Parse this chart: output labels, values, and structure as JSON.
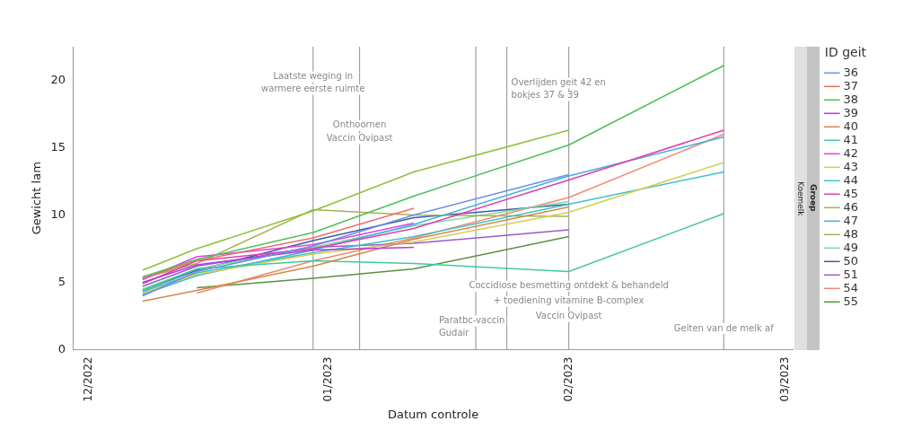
{
  "chart_data": {
    "type": "line",
    "xlabel": "Datum controle",
    "ylabel": "Gewicht lam",
    "legend_title": "ID geit",
    "legend": "right",
    "grid": false,
    "marker": "none",
    "line_style": "solid",
    "x": [
      "2022-12-08",
      "2022-12-15",
      "2022-12-30",
      "2023-01-12",
      "2023-02-01",
      "2023-02-21"
    ],
    "xlim": [
      "2022-11-29",
      "2023-03-02"
    ],
    "xticks": [
      {
        "value": "2022-12-01",
        "label": "12/2022"
      },
      {
        "value": "2023-01-01",
        "label": "01/2023"
      },
      {
        "value": "2023-02-01",
        "label": "02/2023"
      },
      {
        "value": "2023-03-01",
        "label": "03/2023"
      }
    ],
    "ylim": [
      0,
      22.5
    ],
    "yticks": [
      0,
      5,
      10,
      15,
      20
    ],
    "series": [
      {
        "name": "36",
        "color": "#6a8de8",
        "values": [
          4.0,
          5.8,
          7.7,
          10.0,
          13.0,
          null
        ]
      },
      {
        "name": "37",
        "color": "#e8706a",
        "values": [
          5.3,
          6.6,
          8.3,
          10.5,
          null,
          null
        ]
      },
      {
        "name": "38",
        "color": "#4cbf5a",
        "values": [
          5.4,
          6.7,
          8.7,
          11.4,
          15.2,
          21.1
        ]
      },
      {
        "name": "39",
        "color": "#b53ae0",
        "values": [
          5.0,
          6.3,
          7.4,
          7.6,
          null,
          null
        ]
      },
      {
        "name": "40",
        "color": "#d4884a",
        "values": [
          3.6,
          4.4,
          6.2,
          8.2,
          10.6,
          null
        ]
      },
      {
        "name": "41",
        "color": "#40c9a0",
        "values": [
          4.4,
          6.0,
          6.6,
          6.4,
          5.8,
          10.1
        ]
      },
      {
        "name": "42",
        "color": "#e040e0",
        "values": [
          5.2,
          6.9,
          7.8,
          9.4,
          null,
          null
        ]
      },
      {
        "name": "43",
        "color": "#d4cf50",
        "values": [
          4.2,
          5.6,
          7.1,
          8.0,
          10.2,
          13.9
        ]
      },
      {
        "name": "44",
        "color": "#40c0c8",
        "values": [
          4.3,
          5.7,
          7.2,
          8.4,
          10.8,
          13.2
        ]
      },
      {
        "name": "45",
        "color": "#e03caa",
        "values": [
          4.9,
          6.6,
          7.5,
          9.0,
          12.6,
          16.3
        ]
      },
      {
        "name": "46",
        "color": "#90c03a",
        "values": [
          5.9,
          7.5,
          10.3,
          13.2,
          16.3,
          null
        ]
      },
      {
        "name": "47",
        "color": "#40b0e0",
        "values": [
          4.1,
          5.5,
          7.4,
          9.3,
          12.9,
          15.8
        ]
      },
      {
        "name": "48",
        "color": "#a8b050",
        "values": [
          5.3,
          6.4,
          10.4,
          10.0,
          9.9,
          null
        ]
      },
      {
        "name": "49",
        "color": "#80d8a0",
        "values": [
          4.5,
          6.0,
          7.6,
          9.2,
          11.0,
          null
        ]
      },
      {
        "name": "50",
        "color": "#3a5aa8",
        "values": [
          4.4,
          5.9,
          8.1,
          9.8,
          10.8,
          null
        ]
      },
      {
        "name": "51",
        "color": "#9a5ac8",
        "values": [
          4.7,
          6.2,
          7.6,
          7.9,
          8.9,
          null
        ]
      },
      {
        "name": "54",
        "color": "#f08a70",
        "values": [
          null,
          4.2,
          6.6,
          8.3,
          11.3,
          16.0
        ]
      },
      {
        "name": "55",
        "color": "#5a9040",
        "values": [
          null,
          4.6,
          5.3,
          6.0,
          8.4,
          null
        ]
      }
    ],
    "ref_lines": [
      {
        "axis": "x",
        "value": "2022-12-30",
        "label": "Laatste weging in\nwarmere eerste ruimte",
        "color": "#a0a0a0"
      },
      {
        "axis": "x",
        "value": "2023-01-05",
        "label": "Onthoornen\nVaccin Ovipast",
        "color": "#a0a0a0"
      },
      {
        "axis": "x",
        "value": "2023-01-20",
        "label": "Paratbc-vaccin\nGudair",
        "color": "#a0a0a0"
      },
      {
        "axis": "x",
        "value": "2023-01-24",
        "label": "Overlijden geit 42 en\nbokjes 37 & 39",
        "color": "#a0a0a0"
      },
      {
        "axis": "x",
        "value": "2023-02-01",
        "label": "Coccidiose besmetting ontdekt & behandeld\n+ toediening vitamine B-complex\nVaccin Ovipast",
        "color": "#a0a0a0"
      },
      {
        "axis": "x",
        "value": "2023-02-21",
        "label": "Geiten van de melk af",
        "color": "#a0a0a0"
      }
    ],
    "annotations": [
      "Groep",
      "Koemelk"
    ]
  }
}
